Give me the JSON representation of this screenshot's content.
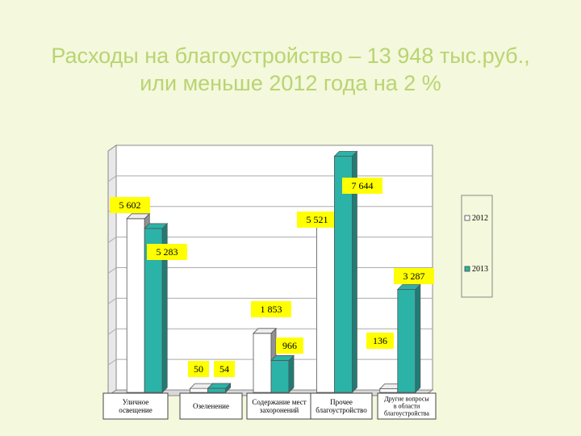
{
  "title": {
    "line1": "Расходы на благоустройство – 13 948 тыс.руб.,",
    "line2": "или меньше 2012 года на 2 %"
  },
  "colors": {
    "s2012": "#ffffff",
    "s2013": "#2bb3a8",
    "label_bg": "#ffff00",
    "title": "#b9d472"
  },
  "chart_data": {
    "type": "bar",
    "title": "Расходы на благоустройство – 13 948 тыс.руб., или меньше 2012 года на 2 %",
    "categories": [
      "Уличное освещение",
      "Озеленение",
      "Содержание мест захоронений",
      "Прочее благоустройство",
      "Другие вопросы в области благоустройства"
    ],
    "series": [
      {
        "name": "2012",
        "values": [
          5602,
          50,
          1853,
          5521,
          null
        ]
      },
      {
        "name": "2013",
        "values": [
          5283,
          54,
          966,
          7644,
          3287
        ]
      }
    ],
    "data_labels": [
      [
        "5 602",
        "50",
        "1 853",
        "5 521",
        "136"
      ],
      [
        "5 283",
        "54",
        "966",
        "7 644",
        "3 287"
      ]
    ],
    "ylim": [
      0,
      8000
    ],
    "grid": true,
    "legend": "right"
  }
}
